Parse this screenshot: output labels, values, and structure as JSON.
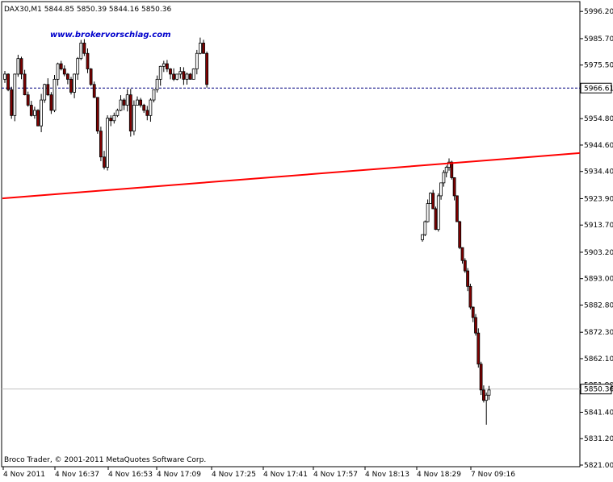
{
  "chart_data": {
    "type": "candlestick",
    "header": "DAX30,M1  5844.85 5850.39 5844.16 5850.36",
    "watermark": "www.brokervorschlag.com",
    "copyright": "Broco Trader, © 2001-2011 MetaQuotes Software Corp.",
    "ylim": [
      5821.0,
      6000.0
    ],
    "y_ticks": [
      "5996.20",
      "5985.70",
      "5975.50",
      "5966.61",
      "5954.80",
      "5944.60",
      "5934.40",
      "5923.90",
      "5913.70",
      "5903.20",
      "5893.00",
      "5882.80",
      "5872.30",
      "5862.10",
      "5851.90",
      "5850.36",
      "5841.40",
      "5831.20",
      "5821.00"
    ],
    "x_ticks": [
      "4 Nov 2011",
      "4 Nov 16:37",
      "4 Nov 16:53",
      "4 Nov 17:09",
      "4 Nov 17:25",
      "4 Nov 17:41",
      "4 Nov 17:57",
      "4 Nov 18:13",
      "4 Nov 18:29",
      "7 Nov 09:16"
    ],
    "reference_lines": [
      {
        "label": "5966.61",
        "value": 5966.61,
        "style": "dashed",
        "color": "#000080"
      },
      {
        "label": "5850.36",
        "value": 5850.36,
        "style": "solid",
        "color": "#c0c0c0"
      }
    ],
    "trendline": {
      "color": "#ff0000",
      "start_value": 5924.0,
      "end_value": 5941.5
    },
    "bullish_color": "#ffffff",
    "bearish_color": "#800000"
  }
}
